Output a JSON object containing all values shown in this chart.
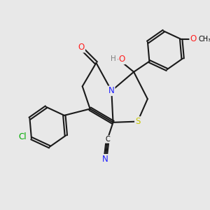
{
  "background_color": "#e8e8e8",
  "bond_color": "#1a1a1a",
  "colors": {
    "N": "#1a1aff",
    "O": "#ff2020",
    "S": "#c8c800",
    "Cl": "#00aa00",
    "H": "#808080",
    "C": "#000000",
    "CN_N": "#2020ff"
  },
  "figsize": [
    3.0,
    3.0
  ],
  "dpi": 100
}
